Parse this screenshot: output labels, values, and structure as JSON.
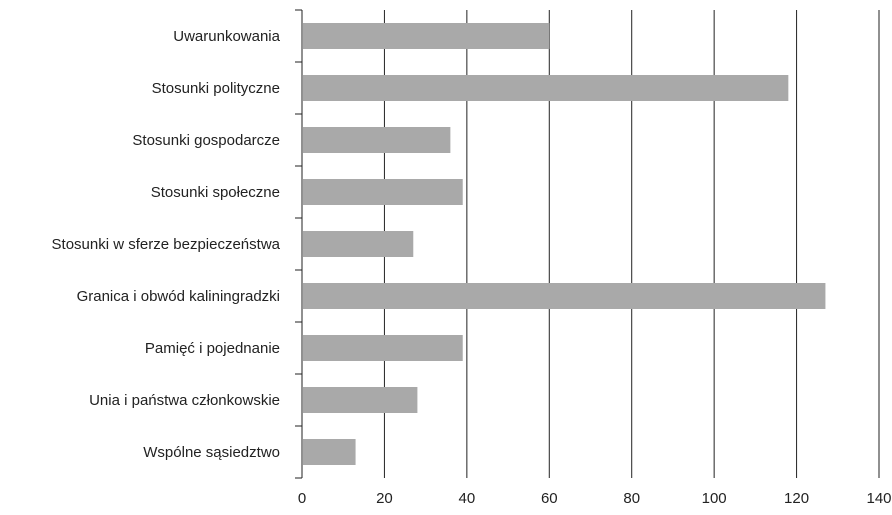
{
  "chart_data": {
    "type": "bar",
    "orientation": "horizontal",
    "categories": [
      "Uwarunkowania",
      "Stosunki polityczne",
      "Stosunki gospodarcze",
      "Stosunki społeczne",
      "Stosunki w sferze bezpieczeństwa",
      "Granica i obwód kaliningradzki",
      "Pamięć i pojednanie",
      "Unia i państwa członkowskie",
      "Wspólne sąsiedztwo"
    ],
    "values": [
      60,
      118,
      36,
      39,
      27,
      127,
      39,
      28,
      13
    ],
    "xlim": [
      0,
      140
    ],
    "xticks": [
      0,
      20,
      40,
      60,
      80,
      100,
      120,
      140
    ],
    "grid": "vertical",
    "legend": "none",
    "colors": {
      "bar": "#a9a9a9",
      "grid": "#222222",
      "axis": "#222222",
      "text": "#222222"
    }
  }
}
